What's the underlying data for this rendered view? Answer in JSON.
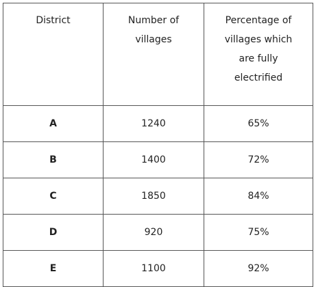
{
  "table": {
    "header": [
      [
        "District"
      ],
      [
        "Number of",
        "villages"
      ],
      [
        "Percentage of",
        "villages which",
        "are fully",
        "electrified"
      ]
    ],
    "rows": [
      [
        "A",
        "1240",
        "65%"
      ],
      [
        "B",
        "1400",
        "72%"
      ],
      [
        "C",
        "1850",
        "84%"
      ],
      [
        "D",
        "920",
        "75%"
      ],
      [
        "E",
        "1100",
        "92%"
      ]
    ]
  }
}
